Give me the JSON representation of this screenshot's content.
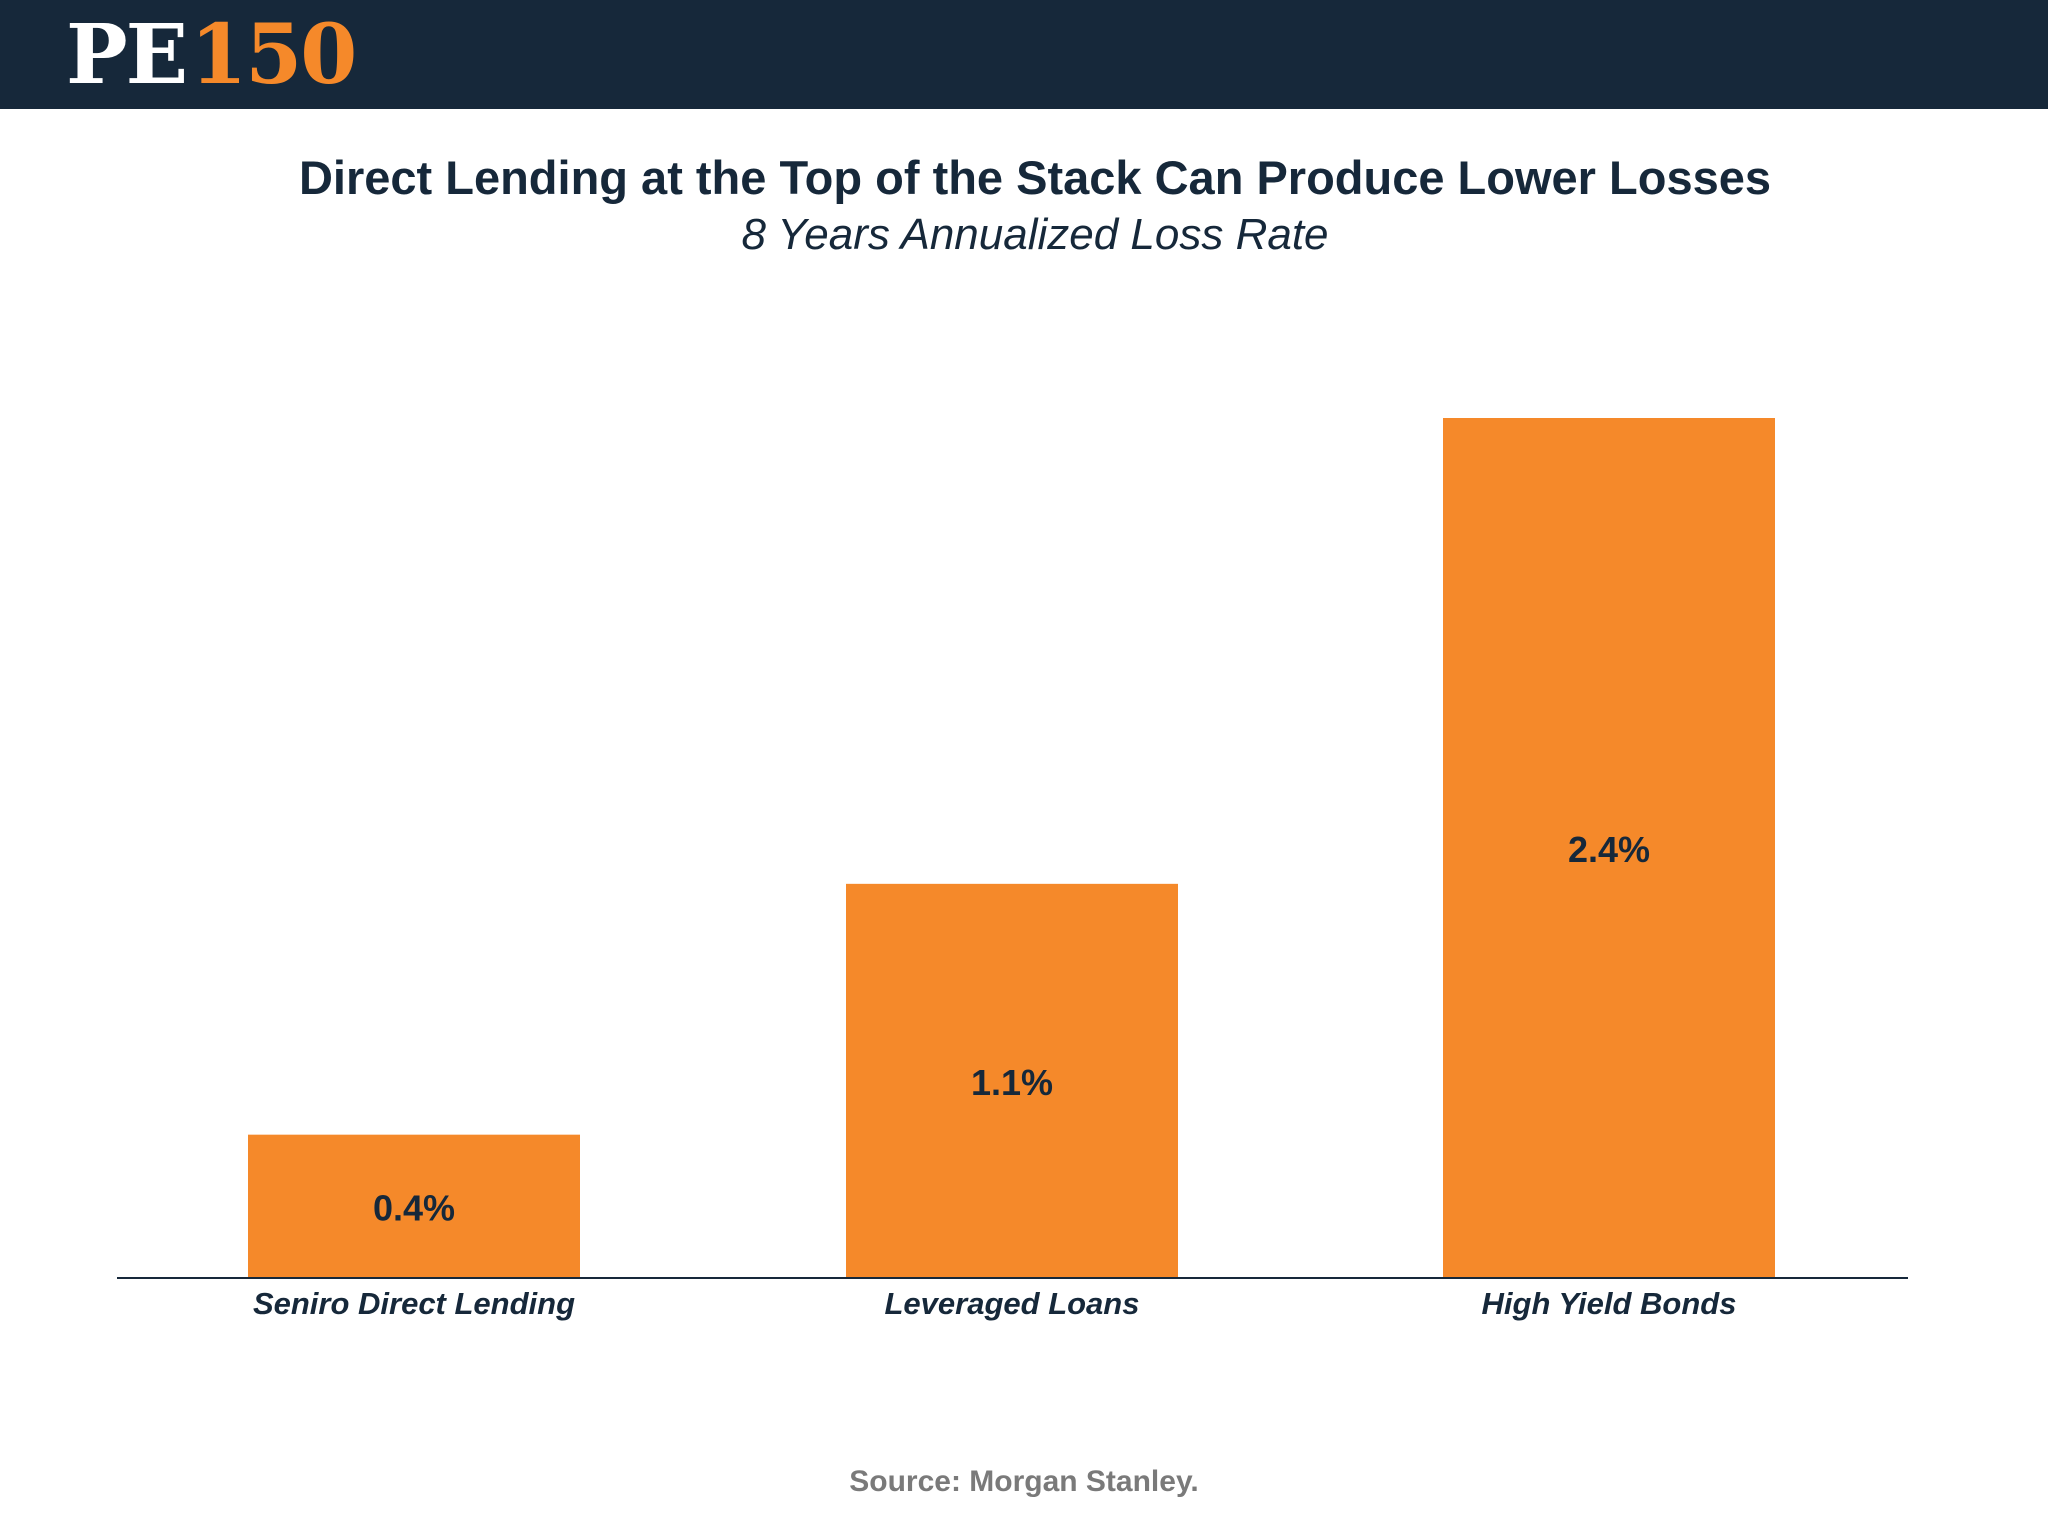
{
  "header": {
    "logo_pe": "PE",
    "logo_num": "150",
    "logo_white": "#ffffff",
    "logo_accent": "#f5892a",
    "background": "#16283a"
  },
  "chart_data": {
    "type": "bar",
    "title": "Direct Lending at the Top of the Stack Can Produce Lower Losses",
    "subtitle": "8 Years Annualized Loss Rate",
    "categories": [
      "Seniro Direct Lending",
      "Leveraged Loans",
      "High Yield Bonds"
    ],
    "values": [
      0.4,
      1.1,
      2.4
    ],
    "value_labels": [
      "0.4%",
      "1.1%",
      "2.4%"
    ],
    "ylim": [
      0,
      2.4
    ],
    "grid": false,
    "legend": "none",
    "bar_color": "#f5892a",
    "label_color": "#16283a"
  },
  "footer": {
    "source": "Source: Morgan Stanley."
  }
}
